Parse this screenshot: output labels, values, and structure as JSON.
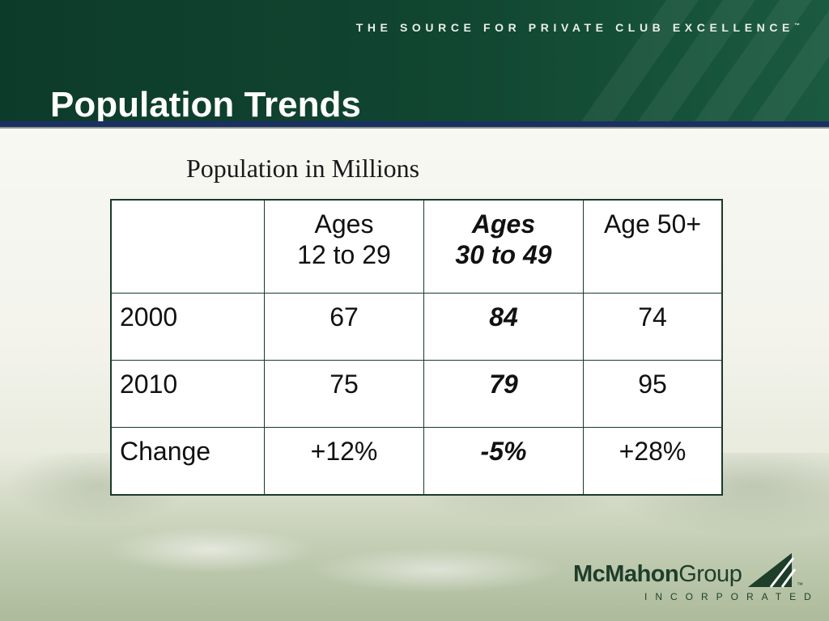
{
  "header": {
    "tagline": "THE SOURCE FOR PRIVATE CLUB EXCELLENCE",
    "tagline_mark": "™",
    "title": "Population Trends"
  },
  "content": {
    "subtitle": "Population in Millions",
    "table": {
      "columns": [
        {
          "line1": "",
          "line2": ""
        },
        {
          "line1": "Ages",
          "line2": "12 to 29"
        },
        {
          "line1": "Ages",
          "line2": "30 to 49"
        },
        {
          "line1": "Age 50+",
          "line2": ""
        }
      ],
      "rows": [
        [
          "2000",
          "67",
          "84",
          "74"
        ],
        [
          "2010",
          "75",
          "79",
          "95"
        ],
        [
          "Change",
          "+12%",
          "-5%",
          "+28%"
        ]
      ]
    }
  },
  "logo": {
    "name_bold": "McMahon",
    "name_regular": "Group",
    "mark": "™",
    "sub": "INCORPORATED"
  },
  "colors": {
    "header_green": "#114631",
    "rule_navy": "#1c2f64",
    "logo_green": "#1e3e2a"
  }
}
